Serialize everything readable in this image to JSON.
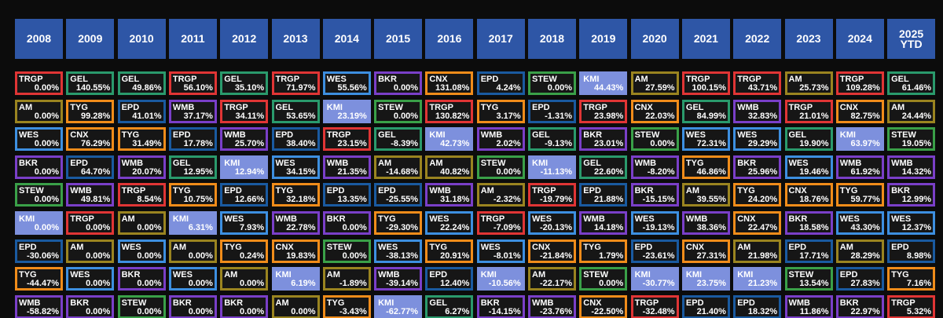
{
  "chart_data": {
    "type": "table",
    "years": [
      "2008",
      "2009",
      "2010",
      "2011",
      "2012",
      "2013",
      "2014",
      "2015",
      "2016",
      "2017",
      "2018",
      "2019",
      "2020",
      "2021",
      "2022",
      "2023",
      "2024",
      "2025\nYTD"
    ],
    "columns": [
      [
        [
          "TRGP",
          "0.00%"
        ],
        [
          "AM",
          "0.00%"
        ],
        [
          "WES",
          "0.00%"
        ],
        [
          "BKR",
          "0.00%"
        ],
        [
          "STEW",
          "0.00%"
        ],
        [
          "KMI",
          "0.00%"
        ],
        [
          "EPD",
          "-30.06%"
        ],
        [
          "TYG",
          "-44.47%"
        ],
        [
          "WMB",
          "-58.82%"
        ]
      ],
      [
        [
          "GEL",
          "140.55%"
        ],
        [
          "TYG",
          "99.28%"
        ],
        [
          "CNX",
          "76.29%"
        ],
        [
          "EPD",
          "64.70%"
        ],
        [
          "WMB",
          "49.81%"
        ],
        [
          "TRGP",
          "0.00%"
        ],
        [
          "AM",
          "0.00%"
        ],
        [
          "WES",
          "0.00%"
        ],
        [
          "BKR",
          "0.00%"
        ]
      ],
      [
        [
          "GEL",
          "49.86%"
        ],
        [
          "EPD",
          "41.01%"
        ],
        [
          "TYG",
          "31.49%"
        ],
        [
          "WMB",
          "20.07%"
        ],
        [
          "TRGP",
          "8.54%"
        ],
        [
          "AM",
          "0.00%"
        ],
        [
          "WES",
          "0.00%"
        ],
        [
          "BKR",
          "0.00%"
        ],
        [
          "STEW",
          "0.00%"
        ]
      ],
      [
        [
          "TRGP",
          "56.10%"
        ],
        [
          "WMB",
          "37.17%"
        ],
        [
          "EPD",
          "17.78%"
        ],
        [
          "GEL",
          "12.95%"
        ],
        [
          "TYG",
          "10.75%"
        ],
        [
          "KMI",
          "6.31%"
        ],
        [
          "AM",
          "0.00%"
        ],
        [
          "WES",
          "0.00%"
        ],
        [
          "BKR",
          "0.00%"
        ]
      ],
      [
        [
          "GEL",
          "35.10%"
        ],
        [
          "TRGP",
          "34.11%"
        ],
        [
          "WMB",
          "25.70%"
        ],
        [
          "KMI",
          "12.94%"
        ],
        [
          "EPD",
          "12.66%"
        ],
        [
          "WES",
          "7.93%"
        ],
        [
          "TYG",
          "0.24%"
        ],
        [
          "AM",
          "0.00%"
        ],
        [
          "BKR",
          "0.00%"
        ]
      ],
      [
        [
          "TRGP",
          "71.97%"
        ],
        [
          "GEL",
          "53.65%"
        ],
        [
          "EPD",
          "38.40%"
        ],
        [
          "WES",
          "34.15%"
        ],
        [
          "TYG",
          "32.18%"
        ],
        [
          "WMB",
          "22.78%"
        ],
        [
          "CNX",
          "19.83%"
        ],
        [
          "KMI",
          "6.19%"
        ],
        [
          "AM",
          "0.00%"
        ]
      ],
      [
        [
          "WES",
          "55.56%"
        ],
        [
          "KMI",
          "23.19%"
        ],
        [
          "TRGP",
          "23.15%"
        ],
        [
          "WMB",
          "21.35%"
        ],
        [
          "EPD",
          "13.35%"
        ],
        [
          "BKR",
          "0.00%"
        ],
        [
          "STEW",
          "0.00%"
        ],
        [
          "AM",
          "-1.89%"
        ],
        [
          "TYG",
          "-3.43%"
        ]
      ],
      [
        [
          "BKR",
          "0.00%"
        ],
        [
          "STEW",
          "0.00%"
        ],
        [
          "GEL",
          "-8.39%"
        ],
        [
          "AM",
          "-14.68%"
        ],
        [
          "EPD",
          "-25.55%"
        ],
        [
          "TYG",
          "-29.30%"
        ],
        [
          "WES",
          "-38.13%"
        ],
        [
          "WMB",
          "-39.14%"
        ],
        [
          "KMI",
          "-62.77%"
        ]
      ],
      [
        [
          "CNX",
          "131.08%"
        ],
        [
          "TRGP",
          "130.82%"
        ],
        [
          "KMI",
          "42.73%"
        ],
        [
          "AM",
          "40.82%"
        ],
        [
          "WMB",
          "31.18%"
        ],
        [
          "WES",
          "22.24%"
        ],
        [
          "TYG",
          "20.91%"
        ],
        [
          "EPD",
          "12.40%"
        ],
        [
          "GEL",
          "6.27%"
        ]
      ],
      [
        [
          "EPD",
          "4.24%"
        ],
        [
          "TYG",
          "3.17%"
        ],
        [
          "WMB",
          "2.02%"
        ],
        [
          "STEW",
          "0.00%"
        ],
        [
          "AM",
          "-2.32%"
        ],
        [
          "TRGP",
          "-7.09%"
        ],
        [
          "WES",
          "-8.01%"
        ],
        [
          "KMI",
          "-10.56%"
        ],
        [
          "BKR",
          "-14.15%"
        ]
      ],
      [
        [
          "STEW",
          "0.00%"
        ],
        [
          "EPD",
          "-1.31%"
        ],
        [
          "GEL",
          "-9.13%"
        ],
        [
          "KMI",
          "-11.13%"
        ],
        [
          "TRGP",
          "-19.79%"
        ],
        [
          "WES",
          "-20.13%"
        ],
        [
          "CNX",
          "-21.84%"
        ],
        [
          "AM",
          "-22.17%"
        ],
        [
          "WMB",
          "-23.76%"
        ]
      ],
      [
        [
          "KMI",
          "44.43%"
        ],
        [
          "TRGP",
          "23.98%"
        ],
        [
          "BKR",
          "23.01%"
        ],
        [
          "GEL",
          "22.60%"
        ],
        [
          "EPD",
          "21.88%"
        ],
        [
          "WMB",
          "14.18%"
        ],
        [
          "TYG",
          "1.79%"
        ],
        [
          "STEW",
          "0.00%"
        ],
        [
          "CNX",
          "-22.50%"
        ]
      ],
      [
        [
          "AM",
          "27.59%"
        ],
        [
          "CNX",
          "22.03%"
        ],
        [
          "STEW",
          "0.00%"
        ],
        [
          "WMB",
          "-8.20%"
        ],
        [
          "BKR",
          "-15.15%"
        ],
        [
          "WES",
          "-19.13%"
        ],
        [
          "EPD",
          "-23.61%"
        ],
        [
          "KMI",
          "-30.77%"
        ],
        [
          "TRGP",
          "-32.48%"
        ]
      ],
      [
        [
          "TRGP",
          "100.15%"
        ],
        [
          "GEL",
          "84.99%"
        ],
        [
          "WES",
          "72.31%"
        ],
        [
          "TYG",
          "46.86%"
        ],
        [
          "AM",
          "39.55%"
        ],
        [
          "WMB",
          "38.36%"
        ],
        [
          "CNX",
          "27.31%"
        ],
        [
          "KMI",
          "23.75%"
        ],
        [
          "EPD",
          "21.40%"
        ]
      ],
      [
        [
          "TRGP",
          "43.71%"
        ],
        [
          "WMB",
          "32.83%"
        ],
        [
          "WES",
          "29.29%"
        ],
        [
          "BKR",
          "25.96%"
        ],
        [
          "TYG",
          "24.20%"
        ],
        [
          "CNX",
          "22.47%"
        ],
        [
          "AM",
          "21.98%"
        ],
        [
          "KMI",
          "21.23%"
        ],
        [
          "EPD",
          "18.32%"
        ]
      ],
      [
        [
          "AM",
          "25.73%"
        ],
        [
          "TRGP",
          "21.01%"
        ],
        [
          "GEL",
          "19.90%"
        ],
        [
          "WES",
          "19.46%"
        ],
        [
          "CNX",
          "18.76%"
        ],
        [
          "BKR",
          "18.58%"
        ],
        [
          "EPD",
          "17.71%"
        ],
        [
          "STEW",
          "13.54%"
        ],
        [
          "WMB",
          "11.86%"
        ]
      ],
      [
        [
          "TRGP",
          "109.28%"
        ],
        [
          "CNX",
          "82.75%"
        ],
        [
          "KMI",
          "63.97%"
        ],
        [
          "WMB",
          "61.92%"
        ],
        [
          "TYG",
          "59.77%"
        ],
        [
          "WES",
          "43.30%"
        ],
        [
          "AM",
          "28.29%"
        ],
        [
          "EPD",
          "27.83%"
        ],
        [
          "BKR",
          "22.97%"
        ]
      ],
      [
        [
          "GEL",
          "61.46%"
        ],
        [
          "AM",
          "24.44%"
        ],
        [
          "STEW",
          "19.05%"
        ],
        [
          "WMB",
          "14.32%"
        ],
        [
          "BKR",
          "12.99%"
        ],
        [
          "WES",
          "12.37%"
        ],
        [
          "EPD",
          "8.98%"
        ],
        [
          "TYG",
          "7.16%"
        ],
        [
          "TRGP",
          "5.32%"
        ]
      ]
    ]
  },
  "ticker_colors": {
    "TRGP": "#e03535",
    "GEL": "#2a9a6c",
    "AM": "#9a8420",
    "TYG": "#f08c1a",
    "WES": "#3d8fe0",
    "CNX": "#f08c1a",
    "BKR": "#7a3fc8",
    "EPD": "#1a5aa0",
    "WMB": "#7a3fc8",
    "STEW": "#3aa048",
    "KMI": "#7d90dd"
  },
  "filled_tickers": [
    "KMI"
  ]
}
